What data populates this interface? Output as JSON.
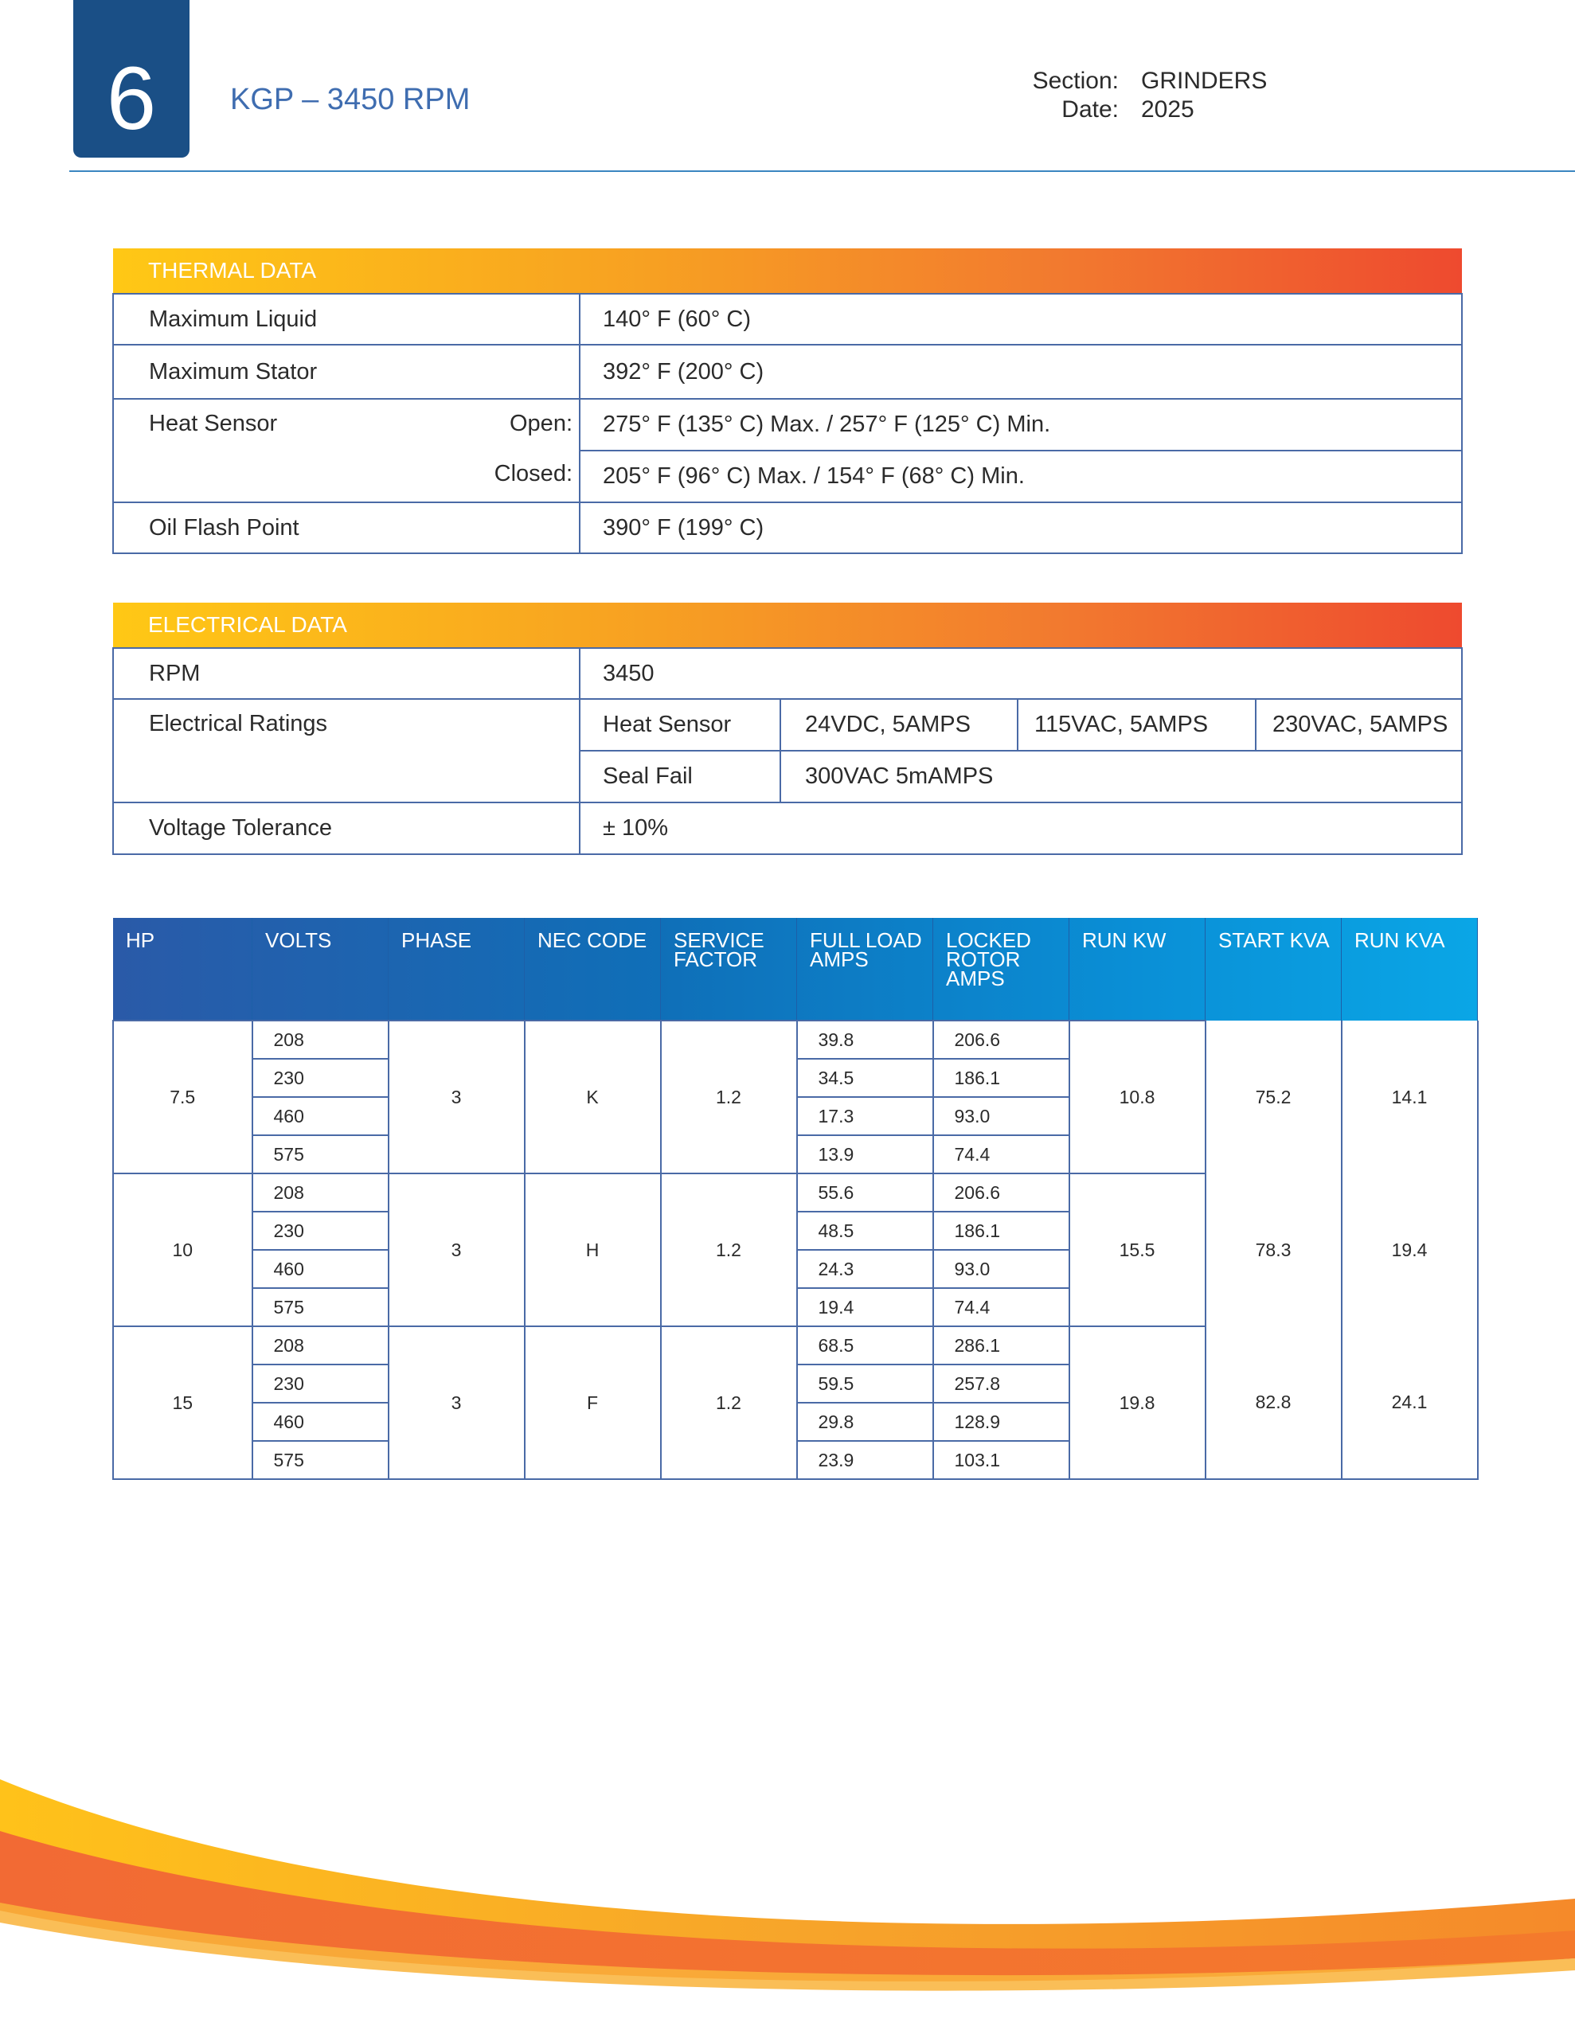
{
  "header": {
    "page_number": "6",
    "title": "KGP – 3450 RPM",
    "section_label": "Section:",
    "section_value": "GRINDERS",
    "date_label": "Date:",
    "date_value": "2025"
  },
  "thermal": {
    "title": "THERMAL DATA",
    "rows": [
      {
        "label": "Maximum Liquid",
        "value": "140° F (60° C)"
      },
      {
        "label": "Maximum Stator",
        "value": "392° F (200° C)"
      },
      {
        "label": "Heat Sensor",
        "open_label": "Open:",
        "open_value": "275° F (135° C) Max. / 257° F (125° C) Min.",
        "closed_label": "Closed:",
        "closed_value": "205° F (96° C) Max. / 154° F (68° C) Min."
      },
      {
        "label": "Oil Flash Point",
        "value": "390° F (199° C)"
      }
    ]
  },
  "electrical": {
    "title": "ELECTRICAL DATA",
    "rpm_label": "RPM",
    "rpm_value": "3450",
    "ratings_label": "Electrical Ratings",
    "heat_sensor_label": "Heat Sensor",
    "heat_sensor_values": [
      "24VDC, 5AMPS",
      "115VAC, 5AMPS",
      "230VAC, 5AMPS"
    ],
    "seal_fail_label": "Seal Fail",
    "seal_fail_value": "300VAC 5mAMPS",
    "tolerance_label": "Voltage Tolerance",
    "tolerance_value": "± 10%"
  },
  "motor": {
    "headers": [
      "HP",
      "VOLTS",
      "PHASE",
      "NEC CODE",
      "SERVICE FACTOR",
      "FULL LOAD AMPS",
      "LOCKED ROTOR AMPS",
      "RUN KW",
      "START KVA",
      "RUN KVA"
    ],
    "groups": [
      {
        "hp": "7.5",
        "phase": "3",
        "nec": "K",
        "sf": "1.2",
        "run_kw": "10.8",
        "start_kva": "75.2",
        "run_kva": "14.1",
        "rows": [
          [
            "208",
            "39.8",
            "206.6"
          ],
          [
            "230",
            "34.5",
            "186.1"
          ],
          [
            "460",
            "17.3",
            "93.0"
          ],
          [
            "575",
            "13.9",
            "74.4"
          ]
        ]
      },
      {
        "hp": "10",
        "phase": "3",
        "nec": "H",
        "sf": "1.2",
        "run_kw": "15.5",
        "start_kva": "78.3",
        "run_kva": "19.4",
        "rows": [
          [
            "208",
            "55.6",
            "206.6"
          ],
          [
            "230",
            "48.5",
            "186.1"
          ],
          [
            "460",
            "24.3",
            "93.0"
          ],
          [
            "575",
            "19.4",
            "74.4"
          ]
        ]
      },
      {
        "hp": "15",
        "phase": "3",
        "nec": "F",
        "sf": "1.2",
        "run_kw": "19.8",
        "start_kva": "82.8",
        "run_kva": "24.1",
        "rows": [
          [
            "208",
            "68.5",
            "286.1"
          ],
          [
            "230",
            "59.5",
            "257.8"
          ],
          [
            "460",
            "29.8",
            "128.9"
          ],
          [
            "575",
            "23.9",
            "103.1"
          ]
        ]
      }
    ]
  },
  "colors": {
    "brand_blue": "#1a4f86",
    "accent_orange": "#f27a2f",
    "header_yellow": "#ffc815"
  }
}
